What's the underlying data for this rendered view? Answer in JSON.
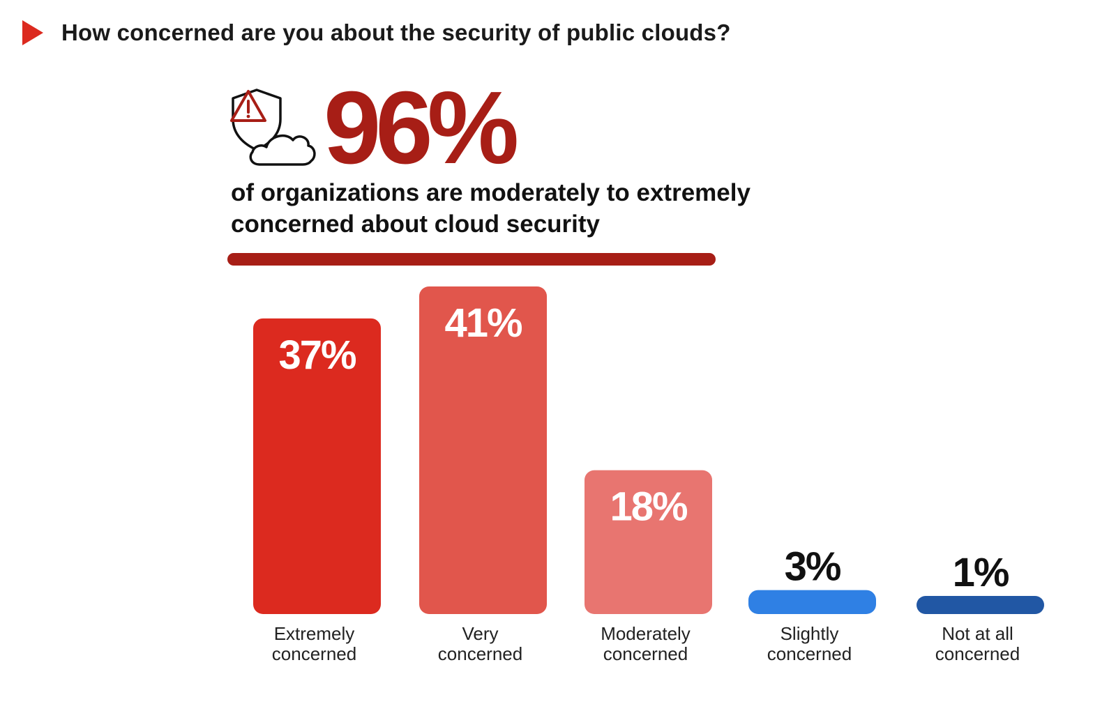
{
  "header": {
    "title": "How concerned are you about the security of public clouds?"
  },
  "hero": {
    "stat": "96%",
    "text": "of organizations are moderately to extremely concerned about cloud security",
    "icon": "shield-cloud-warning-icon"
  },
  "colors": {
    "accent": "#dc2a1f",
    "dark_red": "#a71e16",
    "bars": [
      "#dc2a1f",
      "#e1564c",
      "#e87570",
      "#2f80e4",
      "#2157a4"
    ]
  },
  "chart_data": {
    "type": "bar",
    "categories": [
      "Extremely concerned",
      "Very concerned",
      "Moderately concerned",
      "Slightly concerned",
      "Not at all concerned"
    ],
    "category_lines": [
      [
        "Extremely",
        "concerned"
      ],
      [
        "Very",
        "concerned"
      ],
      [
        "Moderately",
        "concerned"
      ],
      [
        "Slightly",
        "concerned"
      ],
      [
        "Not at all",
        "concerned"
      ]
    ],
    "values": [
      37,
      41,
      18,
      3,
      1
    ],
    "value_labels": [
      "37%",
      "41%",
      "18%",
      "3%",
      "1%"
    ],
    "ylim": [
      0,
      41
    ],
    "grid": false,
    "title": "",
    "xlabel": "",
    "ylabel": ""
  }
}
